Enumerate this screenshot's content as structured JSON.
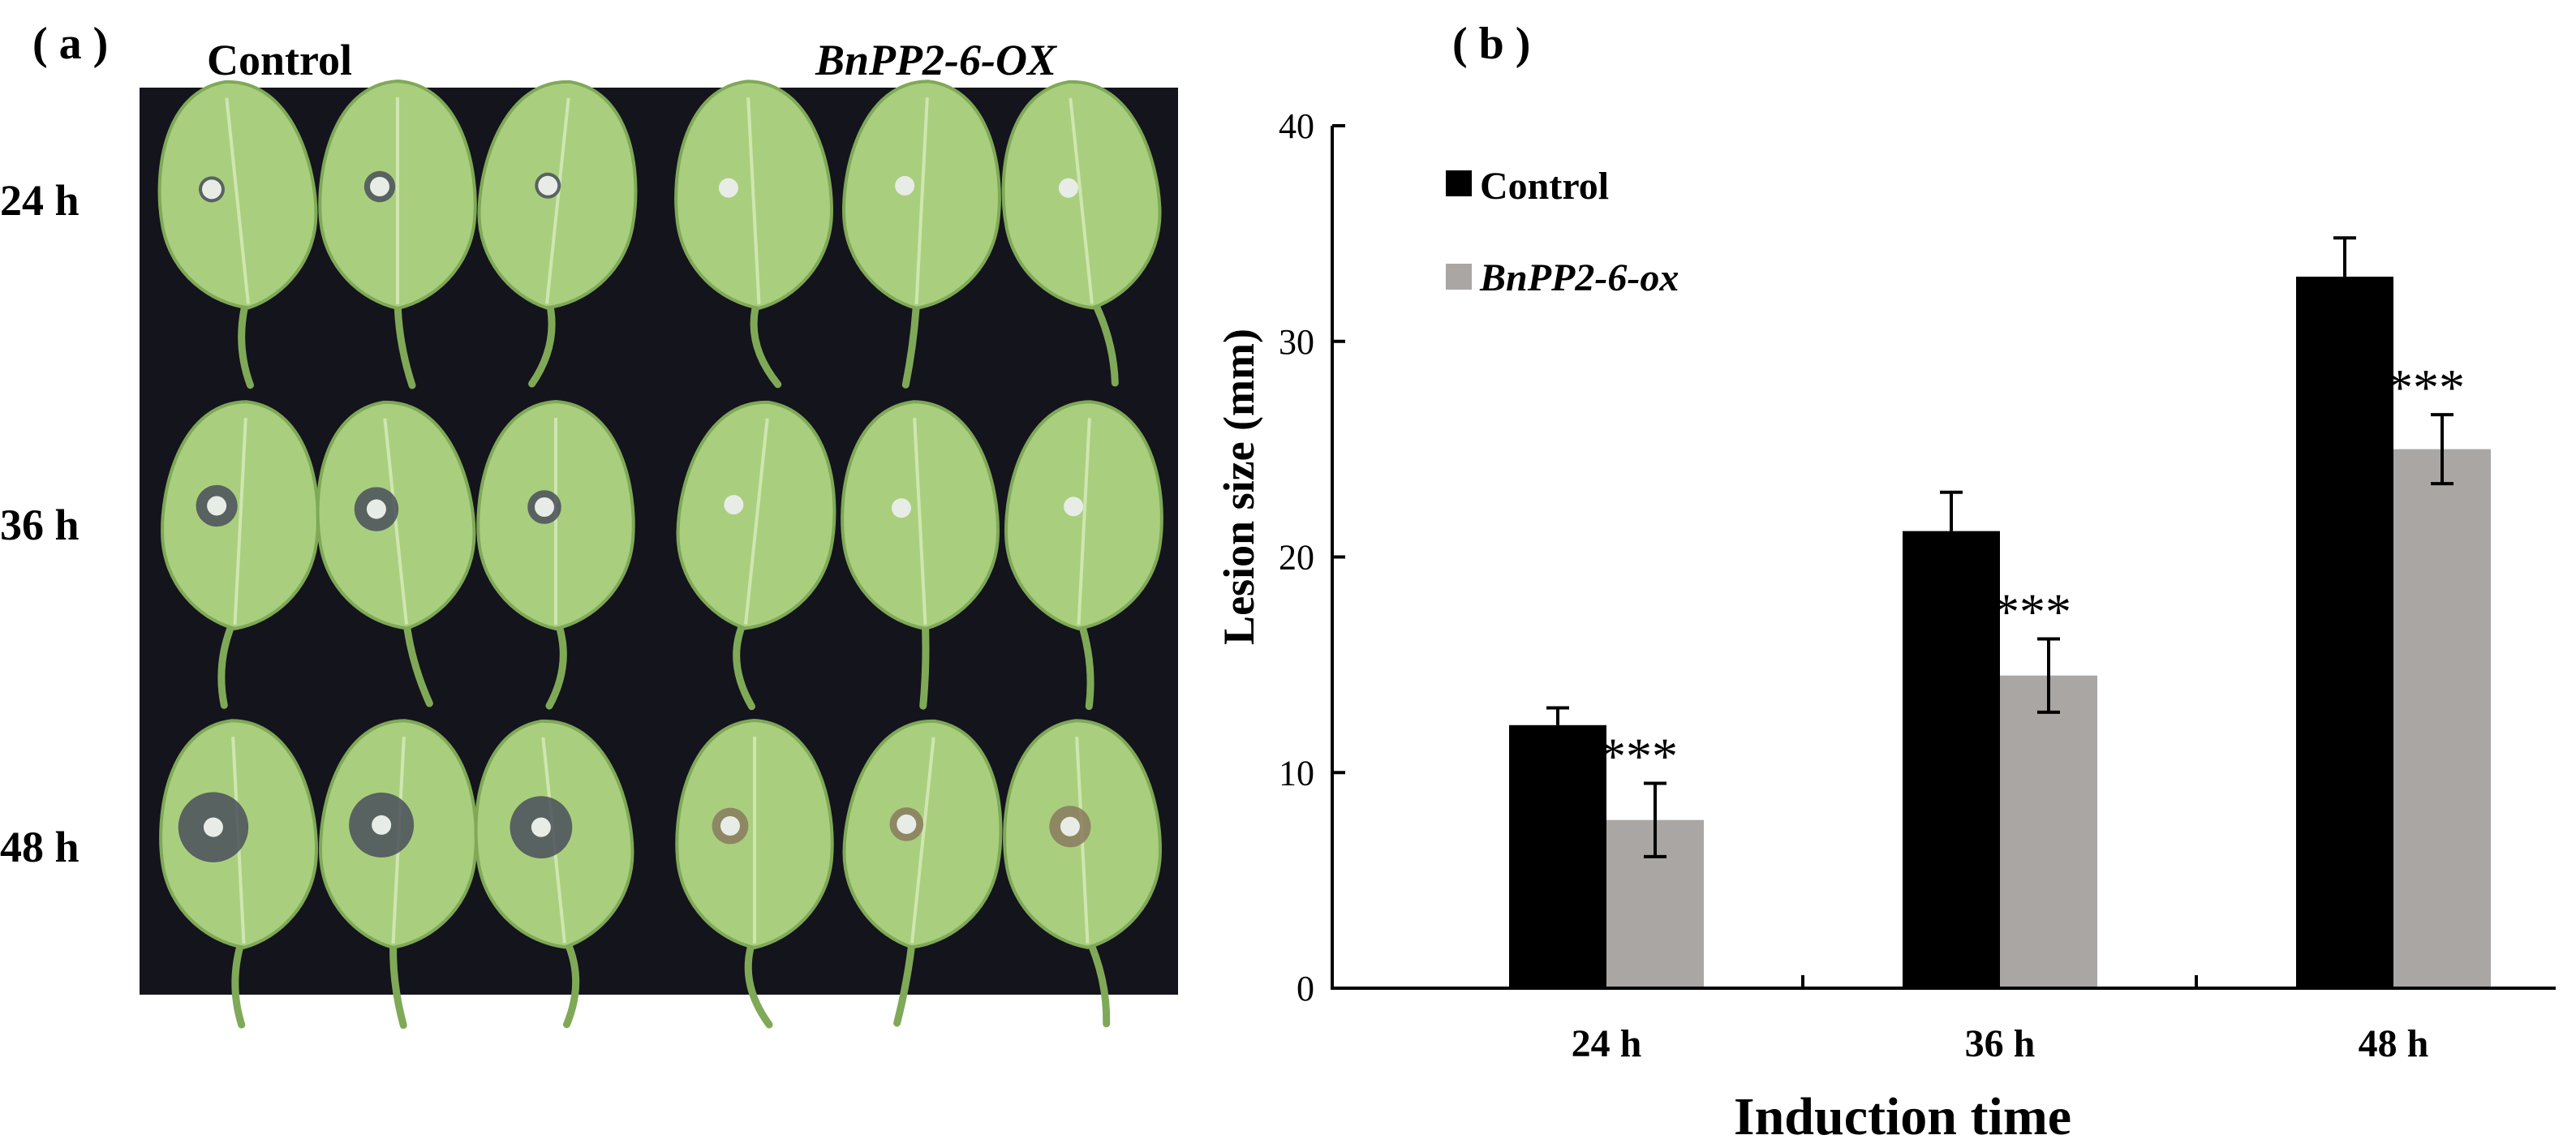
{
  "panel_a": {
    "label": "( a )",
    "column_labels": [
      "Control",
      "BnPP2-6-OX"
    ],
    "row_labels": [
      "24 h",
      "36 h",
      "48 h"
    ],
    "colors": {
      "background": "#14141c",
      "leaf": "#a9cf7e",
      "leaf_edge": "#7fa957",
      "vein": "#cfe6b0",
      "lesion_dark": "#4a4f5a",
      "lesion_brown": "#8a7a5e",
      "disc": "#e8ece6"
    },
    "lesion_scale": [
      [
        1.0,
        1.2,
        1.0,
        0.55,
        0.5,
        0.5
      ],
      [
        1.6,
        1.7,
        1.3,
        0.7,
        0.65,
        0.7
      ],
      [
        2.7,
        2.5,
        2.4,
        1.4,
        1.3,
        1.6
      ]
    ]
  },
  "panel_b": {
    "label": "( b )",
    "chart_data": {
      "type": "bar",
      "categories": [
        "24 h",
        "36 h",
        "48 h"
      ],
      "series": [
        {
          "name": "Control",
          "values": [
            12.2,
            21.2,
            33.0
          ],
          "errors": [
            0.8,
            1.8,
            1.8
          ],
          "color": "#000000"
        },
        {
          "name": "BnPP2-6-ox",
          "values": [
            7.8,
            14.5,
            25.0
          ],
          "errors": [
            1.7,
            1.7,
            1.6
          ],
          "color": "#aaa6a4"
        }
      ],
      "significance": [
        "***",
        "***",
        "***"
      ],
      "xlabel": "Induction time",
      "ylabel": "Lesion  size (mm)",
      "ylim": [
        0,
        40
      ],
      "yticks": [
        0,
        10,
        20,
        30,
        40
      ],
      "grid": false,
      "legend": "top-left"
    }
  }
}
